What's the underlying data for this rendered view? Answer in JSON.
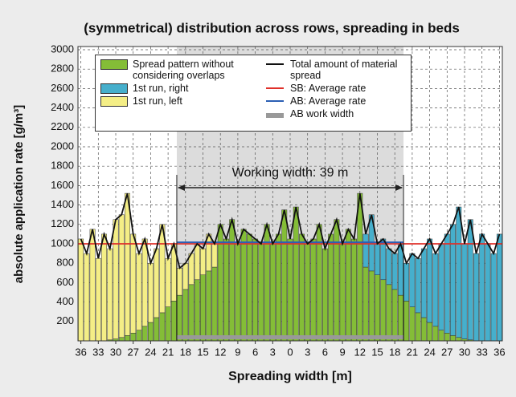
{
  "chart_data": {
    "type": "bar",
    "stacked": true,
    "title": "(symmetrical) distribution across rows, spreading in beds",
    "xlabel": "Spreading width [m]",
    "ylabel": "absolute application rate [g/m³]",
    "x": [
      -36,
      -35,
      -34,
      -33,
      -32,
      -31,
      -30,
      -29,
      -28,
      -27,
      -26,
      -25,
      -24,
      -23,
      -22,
      -21,
      -20,
      -19,
      -18,
      -17,
      -16,
      -15,
      -14,
      -13,
      -12,
      -11,
      -10,
      -9,
      -8,
      -7,
      -6,
      -5,
      -4,
      -3,
      -2,
      -1,
      0,
      1,
      2,
      3,
      4,
      5,
      6,
      7,
      8,
      9,
      10,
      11,
      12,
      13,
      14,
      15,
      16,
      17,
      18,
      19,
      20,
      21,
      22,
      23,
      24,
      25,
      26,
      27,
      28,
      29,
      30,
      31,
      32,
      33,
      34,
      35,
      36
    ],
    "series": [
      {
        "name": "Spread pattern without considering overlaps",
        "color": "#84bd37",
        "values": [
          0,
          0,
          0,
          0,
          0,
          10,
          20,
          35,
          55,
          80,
          110,
          150,
          190,
          240,
          290,
          350,
          410,
          470,
          530,
          580,
          630,
          680,
          720,
          760,
          1200,
          1050,
          1250,
          1000,
          1150,
          1100,
          1050,
          1000,
          1200,
          1000,
          1100,
          1350,
          1050,
          1380,
          1100,
          1000,
          1050,
          1200,
          950,
          1100,
          1250,
          1000,
          1150,
          1050,
          1520,
          760,
          720,
          680,
          630,
          580,
          530,
          470,
          410,
          350,
          290,
          240,
          190,
          150,
          110,
          80,
          55,
          35,
          20,
          10,
          0,
          0,
          0,
          0,
          0
        ]
      },
      {
        "name": "1st run, right",
        "color": "#46afcc",
        "values": [
          0,
          0,
          0,
          0,
          0,
          0,
          0,
          0,
          0,
          0,
          0,
          0,
          0,
          0,
          0,
          0,
          0,
          0,
          0,
          0,
          0,
          0,
          0,
          0,
          0,
          0,
          0,
          0,
          0,
          0,
          0,
          0,
          0,
          0,
          0,
          0,
          0,
          0,
          0,
          0,
          0,
          0,
          0,
          0,
          0,
          0,
          0,
          0,
          0,
          340,
          580,
          320,
          420,
          370,
          370,
          530,
          390,
          550,
          560,
          710,
          860,
          750,
          890,
          1020,
          1145,
          1345,
          980,
          1240,
          900,
          1100,
          1000,
          900,
          1100
        ]
      },
      {
        "name": "1st run, left",
        "color": "#f4ee86",
        "values": [
          1050,
          900,
          1150,
          850,
          1100,
          940,
          1230,
          1265,
          1465,
          1020,
          790,
          900,
          610,
          710,
          910,
          500,
          590,
          280,
          270,
          320,
          370,
          270,
          380,
          240,
          0,
          0,
          0,
          0,
          0,
          0,
          0,
          0,
          0,
          0,
          0,
          0,
          0,
          0,
          0,
          0,
          0,
          0,
          0,
          0,
          0,
          0,
          0,
          0,
          0,
          0,
          0,
          0,
          0,
          0,
          0,
          0,
          0,
          0,
          0,
          0,
          0,
          0,
          0,
          0,
          0,
          0,
          0,
          0,
          0,
          0,
          0,
          0,
          0
        ]
      }
    ],
    "total": {
      "name": "Total amount of material spread",
      "color": "#111111",
      "values": [
        1050,
        900,
        1150,
        850,
        1100,
        950,
        1250,
        1300,
        1520,
        1100,
        900,
        1050,
        800,
        950,
        1200,
        850,
        1000,
        750,
        800,
        900,
        1000,
        950,
        1100,
        1000,
        1200,
        1050,
        1250,
        1000,
        1150,
        1100,
        1050,
        1000,
        1200,
        1000,
        1100,
        1350,
        1050,
        1380,
        1100,
        1000,
        1050,
        1200,
        950,
        1100,
        1250,
        1000,
        1150,
        1050,
        1520,
        1100,
        1300,
        1000,
        1050,
        950,
        900,
        1000,
        800,
        900,
        850,
        950,
        1050,
        900,
        1000,
        1100,
        1200,
        1380,
        1000,
        1250,
        900,
        1100,
        1000,
        900,
        1100
      ]
    },
    "sb_average": {
      "name": "SB: Average rate",
      "color": "#e0302a",
      "value": 1000
    },
    "ab_average": {
      "name": "AB: Average rate",
      "color": "#2b5fb4",
      "value": 1015,
      "x": [
        -19.5,
        19.5
      ]
    },
    "ab_work_width": {
      "name": "AB work width",
      "color": "#999999",
      "x": [
        -19.5,
        19.5
      ]
    },
    "annotation": "Working width: 39 m",
    "xlim": [
      -36.5,
      36.5
    ],
    "ylim": [
      0,
      3000
    ],
    "xticks": [
      {
        "value": -36,
        "label": "36"
      },
      {
        "value": -33,
        "label": "33"
      },
      {
        "value": -30,
        "label": "30"
      },
      {
        "value": -27,
        "label": "27"
      },
      {
        "value": -24,
        "label": "24"
      },
      {
        "value": -21,
        "label": "21"
      },
      {
        "value": -18,
        "label": "18"
      },
      {
        "value": -15,
        "label": "15"
      },
      {
        "value": -12,
        "label": "12"
      },
      {
        "value": -9,
        "label": "9"
      },
      {
        "value": -6,
        "label": "6"
      },
      {
        "value": -3,
        "label": "3"
      },
      0,
      3,
      6,
      9,
      12,
      15,
      18,
      21,
      24,
      27,
      30,
      33,
      36
    ],
    "yticks": [
      200,
      400,
      600,
      800,
      1000,
      1200,
      1400,
      1600,
      1800,
      2000,
      2200,
      2400,
      2600,
      2800,
      3000
    ],
    "grid": true
  }
}
